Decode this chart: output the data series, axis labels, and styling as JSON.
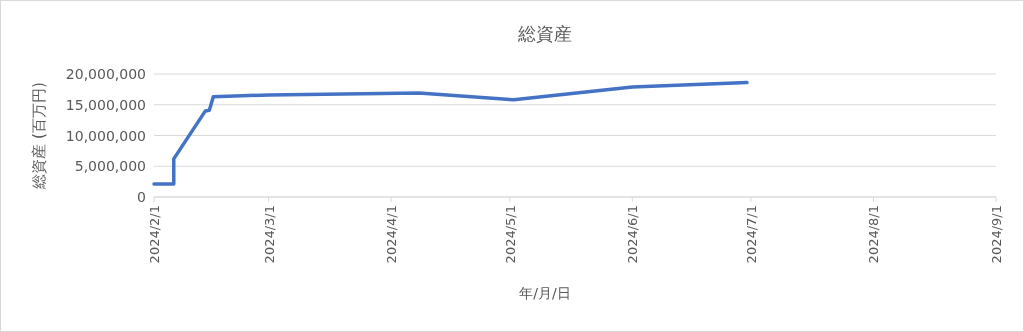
{
  "chart_data": {
    "type": "line",
    "title": "総資産",
    "xlabel": "年/月/日",
    "ylabel": "総資産 (百万円)",
    "x": [
      "2024-02-01",
      "2024-02-06",
      "2024-02-06",
      "2024-02-14",
      "2024-02-15",
      "2024-02-16",
      "2024-03-01",
      "2024-04-08",
      "2024-05-02",
      "2024-06-01",
      "2024-06-30"
    ],
    "series": [
      {
        "color": "#4472c4",
        "values": [
          2100000,
          2100000,
          6200000,
          14000000,
          14100000,
          16300000,
          16600000,
          16900000,
          15800000,
          17900000,
          18600000
        ]
      }
    ],
    "xlim": [
      "2024-02-01",
      "2024-09-01"
    ],
    "xticks": [
      {
        "value": "2024-02-01",
        "label": "2024/2/1"
      },
      {
        "value": "2024-03-01",
        "label": "2024/3/1"
      },
      {
        "value": "2024-04-01",
        "label": "2024/4/1"
      },
      {
        "value": "2024-05-01",
        "label": "2024/5/1"
      },
      {
        "value": "2024-06-01",
        "label": "2024/6/1"
      },
      {
        "value": "2024-07-01",
        "label": "2024/7/1"
      },
      {
        "value": "2024-08-01",
        "label": "2024/8/1"
      },
      {
        "value": "2024-09-01",
        "label": "2024/9/1"
      }
    ],
    "ylim": [
      0,
      20000000
    ],
    "yticks": [
      {
        "value": 0,
        "label": "0"
      },
      {
        "value": 5000000,
        "label": "5,000,000"
      },
      {
        "value": 10000000,
        "label": "10,000,000"
      },
      {
        "value": 15000000,
        "label": "15,000,000"
      },
      {
        "value": 20000000,
        "label": "20,000,000"
      }
    ],
    "grid": "y",
    "marker": "none",
    "line_style": "solid"
  }
}
